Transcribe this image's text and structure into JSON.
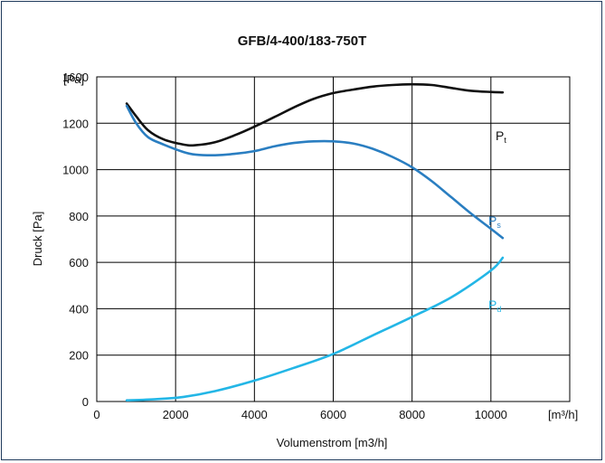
{
  "chart_data": {
    "type": "line",
    "title": "GFB/4-400/183-750T",
    "xlabel": "Volumenstrom [m3/h]",
    "ylabel": "Druck [Pa]",
    "x_unit": "[m³/h]",
    "y_unit": "[Pa]",
    "xlim": [
      0,
      12000
    ],
    "ylim": [
      0,
      1400
    ],
    "xticks": [
      "0",
      "2000",
      "4000",
      "6000",
      "8000",
      "10000"
    ],
    "yticks": [
      "0",
      "200",
      "400",
      "600",
      "800",
      "1000",
      "1200",
      "1600"
    ],
    "grid": true,
    "series": [
      {
        "name": "P",
        "subscript": "t",
        "color": "#111111",
        "x": [
          760,
          1000,
          1300,
          1700,
          2200,
          2500,
          3000,
          3500,
          4000,
          4500,
          5000,
          5500,
          6000,
          6500,
          7000,
          7500,
          8000,
          8500,
          9000,
          9500,
          10000,
          10300
        ],
        "y": [
          1285,
          1230,
          1170,
          1130,
          1108,
          1105,
          1118,
          1148,
          1185,
          1226,
          1268,
          1305,
          1330,
          1345,
          1358,
          1365,
          1368,
          1365,
          1352,
          1340,
          1335,
          1333
        ]
      },
      {
        "name": "P",
        "subscript": "s",
        "color": "#2a7ec1",
        "x": [
          760,
          1000,
          1300,
          1700,
          2200,
          2500,
          3000,
          3500,
          4000,
          4500,
          5000,
          5500,
          6000,
          6500,
          7000,
          7500,
          8000,
          8500,
          9000,
          9500,
          10000,
          10300
        ],
        "y": [
          1275,
          1200,
          1140,
          1108,
          1076,
          1065,
          1062,
          1068,
          1080,
          1100,
          1115,
          1122,
          1122,
          1113,
          1090,
          1055,
          1010,
          950,
          880,
          810,
          745,
          705
        ]
      },
      {
        "name": "P",
        "subscript": "d",
        "color": "#23b6e6",
        "x": [
          760,
          1500,
          2200,
          3000,
          4000,
          5000,
          6000,
          7000,
          8000,
          9000,
          10000,
          10300
        ],
        "y": [
          5,
          10,
          20,
          45,
          90,
          145,
          205,
          285,
          365,
          450,
          565,
          620
        ]
      }
    ]
  }
}
